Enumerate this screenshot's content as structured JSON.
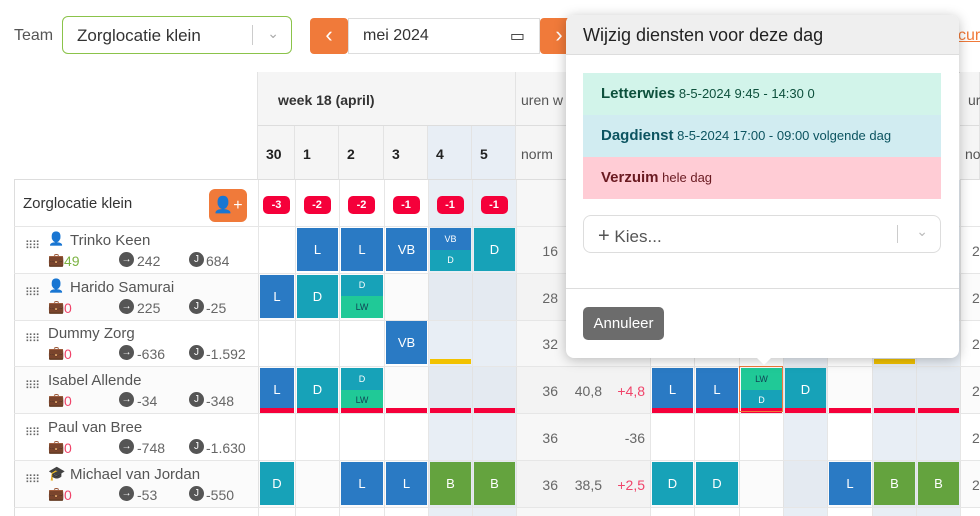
{
  "toolbar": {
    "team_label": "Team",
    "team_value": "Zorglocatie klein",
    "month_value": "mei 2024",
    "prev_icon": "‹",
    "next_icon": "›",
    "link_partial": "cur"
  },
  "header": {
    "week_label": "week 18 (april)",
    "uren_partial": "uren w",
    "uren_partial_right": "ur",
    "norm_label": "norm",
    "norm_partial_right": "no",
    "days": [
      "30",
      "1",
      "2",
      "3",
      "4",
      "5"
    ]
  },
  "group": {
    "name": "Zorglocatie klein",
    "badges": [
      "-3",
      "-2",
      "-2",
      "-1",
      "-1",
      "-1"
    ]
  },
  "rows": [
    {
      "name": "Trinko Keen",
      "icon": "user-plus",
      "vac": "49",
      "vac_color": "green",
      "a": "242",
      "b": "684",
      "norm": "16",
      "uren": "",
      "diff": "",
      "week1": [
        [],
        [
          "L"
        ],
        [
          "L"
        ],
        [
          "VB"
        ],
        [
          "VB",
          "D"
        ],
        [
          "D"
        ]
      ],
      "week2": null
    },
    {
      "name": "Harido Samurai",
      "icon": "user-plus",
      "vac": "0",
      "vac_color": "red",
      "a": "225",
      "b": "-25",
      "norm": "28",
      "uren": "",
      "diff": "",
      "week1": [
        [
          "L"
        ],
        [
          "D"
        ],
        [
          "D",
          "LW"
        ],
        [],
        [],
        []
      ],
      "week2": null
    },
    {
      "name": "Dummy Zorg",
      "icon": "",
      "vac": "0",
      "vac_color": "red",
      "a": "-636",
      "b": "-1.592",
      "norm": "32",
      "uren": "",
      "diff": "",
      "week1": [
        [],
        [],
        [],
        [
          "VB"
        ],
        [],
        []
      ],
      "week2": null
    },
    {
      "name": "Isabel Allende",
      "icon": "",
      "vac": "0",
      "vac_color": "red",
      "a": "-34",
      "b": "-348",
      "norm": "36",
      "uren": "40,8",
      "diff": "+4,8",
      "week1": [
        [
          "L"
        ],
        [
          "D"
        ],
        [
          "D",
          "LW"
        ],
        [],
        [],
        []
      ],
      "week2": [
        [
          "L"
        ],
        [
          "L"
        ],
        [
          "LW",
          "D"
        ],
        [
          "D"
        ],
        [],
        [],
        []
      ]
    },
    {
      "name": "Paul van Bree",
      "icon": "",
      "vac": "0",
      "vac_color": "red",
      "a": "-748",
      "b": "-1.630",
      "norm": "36",
      "uren": "",
      "diff": "-36",
      "week1": [
        [],
        [],
        [],
        [],
        [],
        []
      ],
      "week2": [
        [],
        [],
        [],
        [],
        [],
        [],
        []
      ]
    },
    {
      "name": "Michael van Jordan",
      "icon": "graduation-cap",
      "vac": "0",
      "vac_color": "red",
      "a": "-53",
      "b": "-550",
      "norm": "36",
      "uren": "38,5",
      "diff": "+2,5",
      "week1": [
        [
          "D"
        ],
        [],
        [
          "L"
        ],
        [
          "L"
        ],
        [
          "B"
        ],
        [
          "B"
        ]
      ],
      "week2": [
        [
          "D"
        ],
        [
          "D"
        ],
        [],
        [],
        [
          "L"
        ],
        [
          "B"
        ],
        [
          "B"
        ]
      ]
    }
  ],
  "modal": {
    "title": "Wijzig diensten voor deze dag",
    "entries": [
      {
        "name": "Letterwies",
        "detail": "8-5-2024 9:45 - 14:30 0",
        "bg": "#d2f4ea",
        "color": "#0d503c"
      },
      {
        "name": "Dagdienst",
        "detail": "8-5-2024 17:00 - 09:00 volgende dag",
        "bg": "#d1ecf1",
        "color": "#0c5460"
      },
      {
        "name": "Verzuim",
        "detail": "hele dag",
        "bg": "#ffccd5",
        "color": "#6a1a21"
      }
    ],
    "select_placeholder": "Kies...",
    "cancel_label": "Annuleer"
  },
  "colors": {
    "accent": "#f07a3a",
    "absence_bar": "#f5003a",
    "warning_bar": "#f2c200"
  }
}
